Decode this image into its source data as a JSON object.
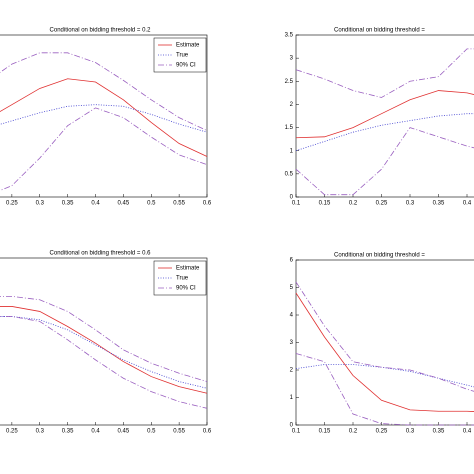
{
  "chart_data": [
    {
      "type": "line",
      "title": "Conditional on bidding threshold = 0.2",
      "x": [
        0.2,
        0.25,
        0.3,
        0.35,
        0.4,
        0.45,
        0.5,
        0.55,
        0.6
      ],
      "xlim": [
        0.2,
        0.6
      ],
      "xticks": [
        0.25,
        0.3,
        0.35,
        0.4,
        0.45,
        0.5,
        0.55,
        0.6
      ],
      "ylim": [
        0,
        1
      ],
      "legend": "upper right",
      "series": [
        {
          "name": "Estimate",
          "color": "#e03030",
          "style": "solid",
          "values": [
            0.47,
            0.57,
            0.67,
            0.73,
            0.71,
            0.6,
            0.46,
            0.33,
            0.25
          ]
        },
        {
          "name": "True",
          "color": "#4040d0",
          "style": "dotted",
          "values": [
            0.42,
            0.47,
            0.52,
            0.56,
            0.57,
            0.56,
            0.51,
            0.45,
            0.4
          ]
        },
        {
          "name": "90% CI",
          "color": "#9a60c0",
          "style": "dashdot",
          "values": [
            0.7,
            0.82,
            0.89,
            0.89,
            0.83,
            0.72,
            0.6,
            0.49,
            0.41
          ],
          "lower": [
            0.0,
            0.07,
            0.24,
            0.44,
            0.55,
            0.49,
            0.37,
            0.26,
            0.2
          ]
        }
      ]
    },
    {
      "type": "line",
      "title": "Conditional on bidding threshold =",
      "x": [
        0.1,
        0.15,
        0.2,
        0.25,
        0.3,
        0.35,
        0.4,
        0.45
      ],
      "xlim": [
        0.1,
        0.45
      ],
      "xticks": [
        0.1,
        0.15,
        0.2,
        0.25,
        0.3,
        0.35,
        0.4
      ],
      "ylim": [
        0,
        3.5
      ],
      "yticks": [
        0,
        0.5,
        1,
        1.5,
        2,
        2.5,
        3,
        3.5
      ],
      "series": [
        {
          "color": "#e03030",
          "style": "solid",
          "values": [
            1.28,
            1.3,
            1.5,
            1.8,
            2.1,
            2.3,
            2.25,
            2.1
          ]
        },
        {
          "color": "#4040d0",
          "style": "dotted",
          "values": [
            1.0,
            1.2,
            1.4,
            1.55,
            1.65,
            1.75,
            1.8,
            1.8
          ]
        },
        {
          "color": "#9a60c0",
          "style": "dashdot",
          "values": [
            2.75,
            2.55,
            2.3,
            2.15,
            2.5,
            2.6,
            3.2,
            3.2
          ],
          "lower": [
            0.6,
            0.05,
            0.05,
            0.6,
            1.5,
            1.3,
            1.1,
            0.95
          ]
        }
      ]
    },
    {
      "type": "line",
      "title": "Conditional on bidding threshold = 0.6",
      "x": [
        0.2,
        0.25,
        0.3,
        0.35,
        0.4,
        0.45,
        0.5,
        0.55,
        0.6
      ],
      "xlim": [
        0.2,
        0.6
      ],
      "xticks": [
        0.25,
        0.3,
        0.35,
        0.4,
        0.45,
        0.5,
        0.55,
        0.6
      ],
      "ylim": [
        0,
        1
      ],
      "legend": "upper right",
      "series": [
        {
          "name": "Estimate",
          "color": "#e03030",
          "style": "solid",
          "values": [
            0.71,
            0.71,
            0.68,
            0.59,
            0.49,
            0.38,
            0.29,
            0.23,
            0.19
          ]
        },
        {
          "name": "True",
          "color": "#4040d0",
          "style": "dotted",
          "values": [
            0.65,
            0.65,
            0.63,
            0.57,
            0.48,
            0.39,
            0.32,
            0.26,
            0.22
          ]
        },
        {
          "name": "90% CI",
          "color": "#9a60c0",
          "style": "dashdot",
          "values": [
            0.77,
            0.77,
            0.75,
            0.68,
            0.57,
            0.45,
            0.37,
            0.31,
            0.26
          ],
          "lower": [
            0.65,
            0.65,
            0.62,
            0.51,
            0.39,
            0.28,
            0.2,
            0.14,
            0.1
          ]
        }
      ]
    },
    {
      "type": "line",
      "title": "Conditional on bidding threshold =",
      "x": [
        0.1,
        0.15,
        0.2,
        0.25,
        0.3,
        0.35,
        0.4,
        0.45
      ],
      "xlim": [
        0.1,
        0.45
      ],
      "xticks": [
        0.1,
        0.15,
        0.2,
        0.25,
        0.3,
        0.35,
        0.4
      ],
      "ylim": [
        0,
        6
      ],
      "yticks": [
        0,
        1,
        2,
        3,
        4,
        5,
        6
      ],
      "series": [
        {
          "color": "#e03030",
          "style": "solid",
          "values": [
            4.8,
            3.2,
            1.8,
            0.9,
            0.55,
            0.5,
            0.5,
            0.45
          ]
        },
        {
          "color": "#4040d0",
          "style": "dotted",
          "values": [
            2.05,
            2.2,
            2.2,
            2.1,
            1.95,
            1.7,
            1.45,
            1.2
          ]
        },
        {
          "color": "#9a60c0",
          "style": "dashdot",
          "values": [
            5.2,
            3.6,
            2.3,
            2.1,
            2.0,
            1.7,
            1.3,
            1.0
          ],
          "lower": [
            2.6,
            2.3,
            0.4,
            0.05,
            0,
            0,
            0,
            0
          ]
        }
      ]
    }
  ]
}
